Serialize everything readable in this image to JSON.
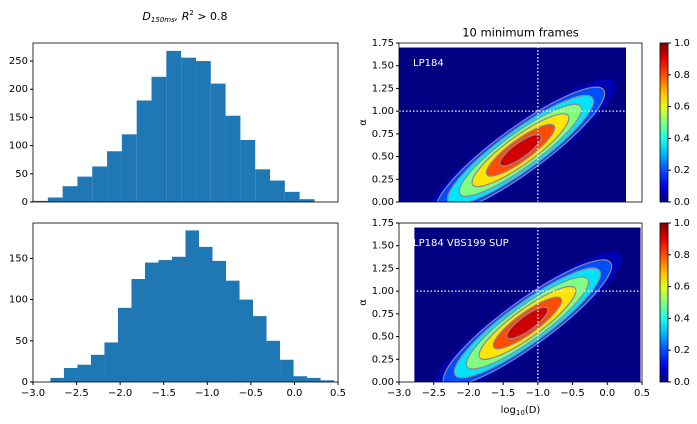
{
  "suptitle": {
    "main": "D",
    "sub": "150ms",
    "rest": ", R",
    "sup": "2",
    "tail": " > 0.8"
  },
  "chart_data": [
    {
      "type": "histogram",
      "color": "#1f77b4",
      "bins": [
        -3.0,
        -2.83,
        -2.66,
        -2.49,
        -2.32,
        -2.15,
        -1.98,
        -1.81,
        -1.64,
        -1.47,
        -1.3,
        -1.13,
        -0.96,
        -0.79,
        -0.62,
        -0.45,
        -0.28,
        -0.11,
        0.06,
        0.23
      ],
      "values": [
        2,
        8,
        28,
        45,
        63,
        90,
        120,
        180,
        222,
        268,
        256,
        250,
        210,
        153,
        110,
        58,
        38,
        18,
        5
      ],
      "xlim": [
        -3,
        0.5
      ],
      "ylim": [
        0,
        282
      ],
      "yticks": [
        0,
        50,
        100,
        150,
        200,
        250
      ]
    },
    {
      "type": "histogram",
      "color": "#1f77b4",
      "bins": [
        -2.8,
        -2.645,
        -2.49,
        -2.335,
        -2.18,
        -2.025,
        -1.87,
        -1.715,
        -1.56,
        -1.405,
        -1.25,
        -1.095,
        -0.94,
        -0.785,
        -0.63,
        -0.475,
        -0.32,
        -0.165,
        -0.01,
        0.145,
        0.3,
        0.455
      ],
      "values": [
        5,
        17,
        21,
        33,
        48,
        90,
        125,
        145,
        148,
        152,
        184,
        164,
        147,
        123,
        100,
        80,
        50,
        27,
        7,
        5,
        2
      ],
      "xlim": [
        -3,
        0.5
      ],
      "ylim": [
        0,
        193
      ],
      "yticks": [
        0,
        50,
        100,
        150
      ],
      "xticks": [
        {
          "value": -3,
          "label": "−3.0"
        },
        {
          "value": -2.5,
          "label": "−2.5"
        },
        {
          "value": -2,
          "label": "−2.0"
        },
        {
          "value": -1.5,
          "label": "−1.5"
        },
        {
          "value": -1,
          "label": "−1.0"
        },
        {
          "value": -0.5,
          "label": "−0.5"
        },
        {
          "value": 0,
          "label": "0.0"
        },
        {
          "value": 0.5,
          "label": "0.5"
        }
      ]
    },
    {
      "type": "density",
      "title": "10 minimum frames",
      "ylabel": "α",
      "annotation": "LP184",
      "xlim": [
        -3,
        0.5
      ],
      "ylim": [
        0,
        1.75
      ],
      "yticks": [
        {
          "value": 0,
          "label": "0.00"
        },
        {
          "value": 0.25,
          "label": "0.25"
        },
        {
          "value": 0.5,
          "label": "0.50"
        },
        {
          "value": 0.75,
          "label": "0.75"
        },
        {
          "value": 1,
          "label": "1.00"
        },
        {
          "value": 1.25,
          "label": "1.25"
        },
        {
          "value": 1.5,
          "label": "1.50"
        },
        {
          "value": 1.75,
          "label": "1.75"
        }
      ],
      "extent": {
        "x": [
          -3.0,
          0.27
        ],
        "y": [
          0,
          1.7
        ]
      },
      "peak": {
        "x": -1.25,
        "y": 0.57
      },
      "levels": [
        0.05,
        0.2,
        0.35,
        0.5,
        0.65,
        0.8,
        0.92
      ],
      "reference_lines": {
        "x": -1,
        "y": 1
      },
      "colorbar": {
        "lim": [
          0,
          1
        ],
        "ticks": [
          {
            "value": 0,
            "label": "0.0"
          },
          {
            "value": 0.2,
            "label": "0.2"
          },
          {
            "value": 0.4,
            "label": "0.4"
          },
          {
            "value": 0.6,
            "label": "0.6"
          },
          {
            "value": 0.8,
            "label": "0.8"
          },
          {
            "value": 1,
            "label": "1.0"
          }
        ]
      }
    },
    {
      "type": "density",
      "ylabel": "α",
      "annotation": "LP184 VBS199 SUP",
      "xlabel": {
        "main": "log",
        "sub": "10",
        "tail": "(D)"
      },
      "xlim": [
        -3,
        0.5
      ],
      "ylim": [
        0,
        1.75
      ],
      "yticks": [
        {
          "value": 0,
          "label": "0.00"
        },
        {
          "value": 0.25,
          "label": "0.25"
        },
        {
          "value": 0.5,
          "label": "0.50"
        },
        {
          "value": 0.75,
          "label": "0.75"
        },
        {
          "value": 1,
          "label": "1.00"
        },
        {
          "value": 1.25,
          "label": "1.25"
        },
        {
          "value": 1.5,
          "label": "1.50"
        },
        {
          "value": 1.75,
          "label": "1.75"
        }
      ],
      "xticks": [
        {
          "value": -3,
          "label": "−3.0"
        },
        {
          "value": -2.5,
          "label": "−2.5"
        },
        {
          "value": -2,
          "label": "−2.0"
        },
        {
          "value": -1.5,
          "label": "−1.5"
        },
        {
          "value": -1,
          "label": "−1.0"
        },
        {
          "value": -0.5,
          "label": "−0.5"
        },
        {
          "value": 0,
          "label": "0.0"
        },
        {
          "value": 0.5,
          "label": "0.5"
        }
      ],
      "extent": {
        "x": [
          -2.78,
          0.48
        ],
        "y": [
          0,
          1.7
        ]
      },
      "peak": {
        "x": -1.15,
        "y": 0.65
      },
      "levels": [
        0.05,
        0.2,
        0.35,
        0.5,
        0.65,
        0.8,
        0.92
      ],
      "reference_lines": {
        "x": -1,
        "y": 1
      },
      "colorbar": {
        "lim": [
          0,
          1
        ],
        "ticks": [
          {
            "value": 0,
            "label": "0.0"
          },
          {
            "value": 0.2,
            "label": "0.2"
          },
          {
            "value": 0.4,
            "label": "0.4"
          },
          {
            "value": 0.6,
            "label": "0.6"
          },
          {
            "value": 0.8,
            "label": "0.8"
          },
          {
            "value": 1,
            "label": "1.0"
          }
        ]
      }
    }
  ]
}
